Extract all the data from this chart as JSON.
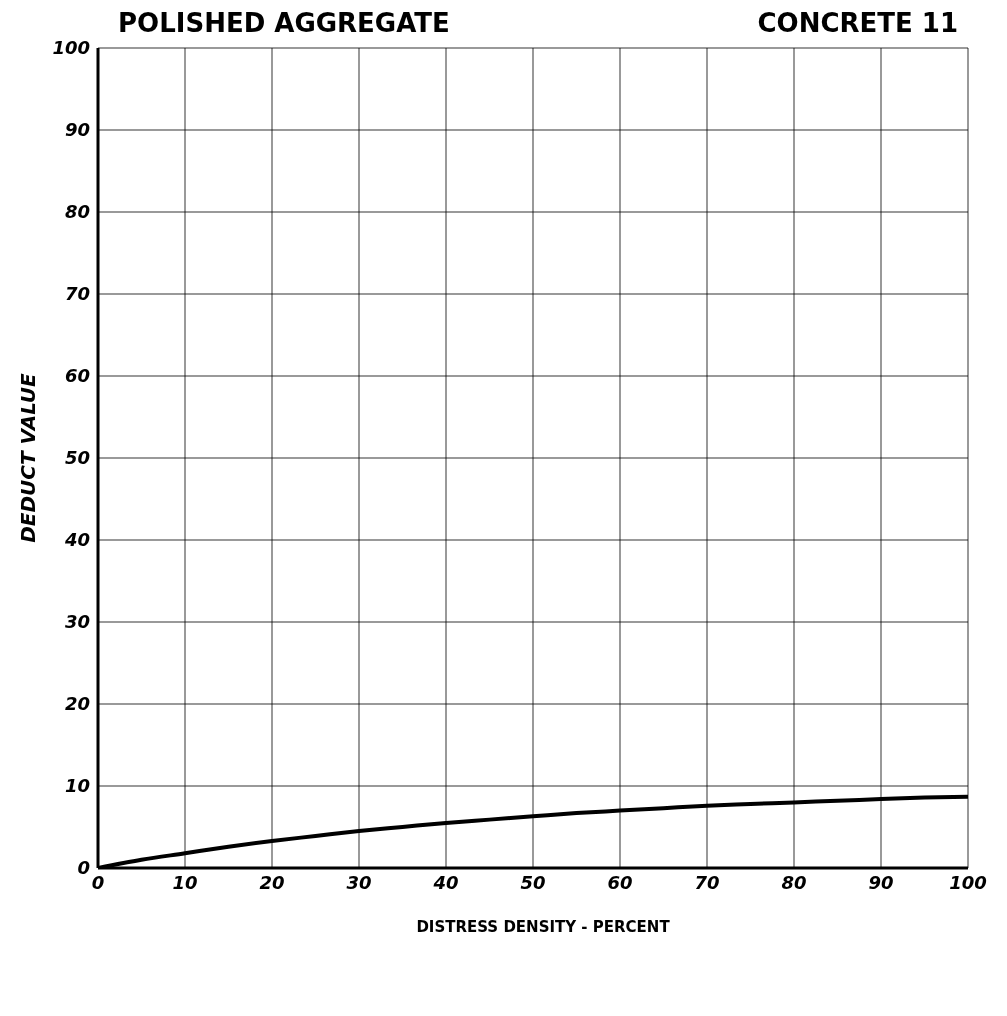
{
  "chart_data": {
    "type": "line",
    "title": "POLISHED AGGREGATE",
    "subtitle": "CONCRETE 11",
    "xlabel": "DISTRESS DENSITY - PERCENT",
    "ylabel": "DEDUCT VALUE",
    "x": [
      0,
      5,
      10,
      15,
      20,
      25,
      30,
      35,
      40,
      45,
      50,
      55,
      60,
      65,
      70,
      75,
      80,
      85,
      90,
      95,
      100
    ],
    "series": [
      {
        "color": "#000000",
        "values": [
          0,
          1.0,
          1.8,
          2.6,
          3.3,
          3.9,
          4.5,
          5.0,
          5.5,
          5.9,
          6.3,
          6.7,
          7.0,
          7.3,
          7.6,
          7.8,
          8.0,
          8.2,
          8.4,
          8.6,
          8.7
        ]
      }
    ],
    "xlim": [
      0,
      100
    ],
    "ylim": [
      0,
      100
    ],
    "xticks": [
      0,
      10,
      20,
      30,
      40,
      50,
      60,
      70,
      80,
      90,
      100
    ],
    "yticks": [
      0,
      10,
      20,
      30,
      40,
      50,
      60,
      70,
      80,
      90,
      100
    ],
    "grid": true,
    "marker": "none",
    "line_style": "solid"
  }
}
